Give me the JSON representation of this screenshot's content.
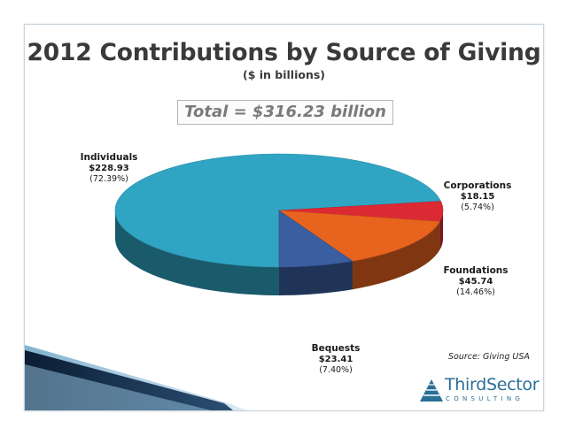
{
  "slide": {
    "title": "2012 Contributions by Source of Giving",
    "subtitle": "($ in billions)",
    "total": "Total = $316.23 billion",
    "source": "Source: Giving USA",
    "logo": {
      "name_part1": "Third",
      "name_part2": "Sector",
      "tagline": "CONSULTING",
      "icon": "triangle-logo-icon"
    }
  },
  "chart_data": {
    "type": "pie",
    "title": "2012 Contributions by Source of Giving",
    "subtitle": "($ in billions)",
    "total": 316.23,
    "slices": [
      {
        "name": "Individuals",
        "value": 228.93,
        "value_label": "$228.93",
        "percent": 72.39,
        "percent_label": "(72.39%)",
        "color": "#2fa5c3"
      },
      {
        "name": "Corporations",
        "value": 18.15,
        "value_label": "$18.15",
        "percent": 5.74,
        "percent_label": "(5.74%)",
        "color": "#dc2a35"
      },
      {
        "name": "Foundations",
        "value": 45.74,
        "value_label": "$45.74",
        "percent": 14.46,
        "percent_label": "(14.46%)",
        "color": "#e8641e"
      },
      {
        "name": "Bequests",
        "value": 23.41,
        "value_label": "$23.41",
        "percent": 7.4,
        "percent_label": "(7.40%)",
        "color": "#3b5ea0"
      }
    ],
    "style": "3d",
    "legend": "none"
  },
  "colors": {
    "frame_border": "#c9d4dd",
    "title": "#3a3a3a",
    "total_text": "#7a7a7a",
    "logo": "#2a6f97",
    "stripe_dark": "#12273f",
    "stripe_blue": "#2a6f97"
  }
}
